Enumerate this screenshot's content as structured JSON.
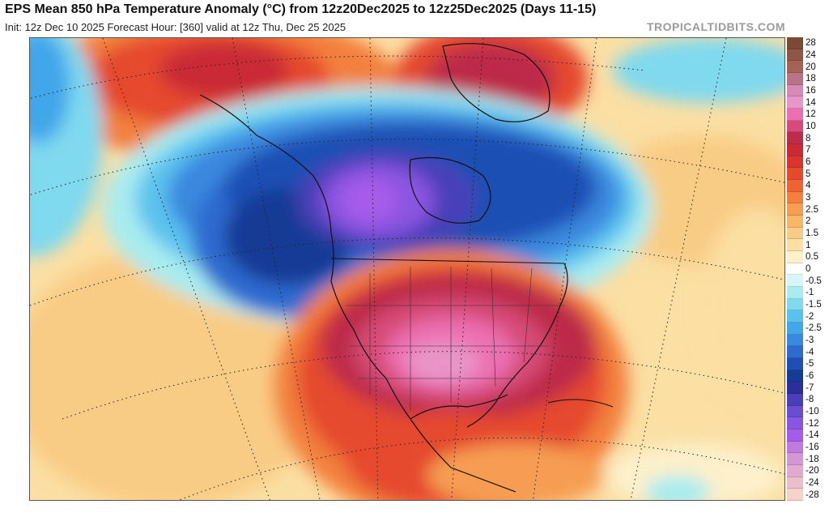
{
  "header": {
    "title": "EPS Mean 850 hPa Temperature Anomaly (°C) from 12z20Dec2025 to 12z25Dec2025 (Days 11-15)",
    "subtitle": "Init: 12z Dec 10 2025   Forecast Hour: [360]   valid at 12z Thu, Dec 25 2025",
    "brand": "TROPICALTIDBITS.COM"
  },
  "map": {
    "region": "North America",
    "field": "850 hPa Temperature Anomaly"
  },
  "legend": {
    "unit": "°C",
    "entries": [
      {
        "label": "28",
        "color": "#7a4a35"
      },
      {
        "label": "24",
        "color": "#8f5547"
      },
      {
        "label": "20",
        "color": "#a36355"
      },
      {
        "label": "18",
        "color": "#b87486"
      },
      {
        "label": "16",
        "color": "#d88ab5"
      },
      {
        "label": "14",
        "color": "#e895c9"
      },
      {
        "label": "12",
        "color": "#ec6fb2"
      },
      {
        "label": "10",
        "color": "#d64b77"
      },
      {
        "label": "8",
        "color": "#bd2c4a"
      },
      {
        "label": "7",
        "color": "#c92a36"
      },
      {
        "label": "6",
        "color": "#d8352e"
      },
      {
        "label": "5",
        "color": "#e54a2e"
      },
      {
        "label": "4",
        "color": "#ee6233"
      },
      {
        "label": "3",
        "color": "#f3803d"
      },
      {
        "label": "2.5",
        "color": "#f69d52"
      },
      {
        "label": "2",
        "color": "#f8b668"
      },
      {
        "label": "1.5",
        "color": "#f9cc85"
      },
      {
        "label": "1",
        "color": "#fbdfa3"
      },
      {
        "label": "0.5",
        "color": "#fdf0cb"
      },
      {
        "label": "0",
        "color": "#ffffff"
      },
      {
        "label": "-0.5",
        "color": "#d8f6f7"
      },
      {
        "label": "-1",
        "color": "#a8ecf0"
      },
      {
        "label": "-1.5",
        "color": "#7fd9ef"
      },
      {
        "label": "-2",
        "color": "#5bc2ee"
      },
      {
        "label": "-2.5",
        "color": "#43a6ea"
      },
      {
        "label": "-3",
        "color": "#3a88df"
      },
      {
        "label": "-4",
        "color": "#2e6bcf"
      },
      {
        "label": "-5",
        "color": "#1f4fb4"
      },
      {
        "label": "-6",
        "color": "#173a95"
      },
      {
        "label": "-7",
        "color": "#2a2f9a"
      },
      {
        "label": "-8",
        "color": "#4a3fb8"
      },
      {
        "label": "-10",
        "color": "#6a4dd0"
      },
      {
        "label": "-12",
        "color": "#8a55e0"
      },
      {
        "label": "-14",
        "color": "#a65ce8"
      },
      {
        "label": "-16",
        "color": "#c07ae0"
      },
      {
        "label": "-18",
        "color": "#d596d6"
      },
      {
        "label": "-20",
        "color": "#e2aad0"
      },
      {
        "label": "-24",
        "color": "#ecbecc"
      },
      {
        "label": "-28",
        "color": "#f6d2c8"
      }
    ]
  }
}
